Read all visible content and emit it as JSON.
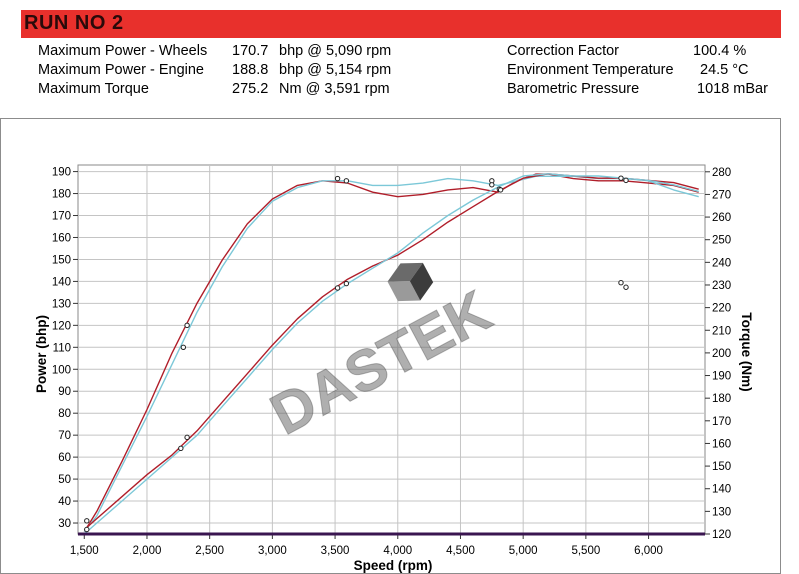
{
  "header": {
    "title": "RUN NO 2"
  },
  "stats": [
    {
      "label": "Maximum Power - Wheels",
      "value": "170.7",
      "unit": "bhp @ 5,090 rpm"
    },
    {
      "label": "Maximum Power - Engine",
      "value": "188.8",
      "unit": "bhp @ 5,154 rpm"
    },
    {
      "label": "Maximum Torque",
      "value": "275.2",
      "unit": "Nm @ 3,591 rpm"
    }
  ],
  "conditions": [
    {
      "label": "Correction Factor",
      "value": "100.4 %"
    },
    {
      "label": "Environment Temperature",
      "value": "24.5 °C"
    },
    {
      "label": "Barometric Pressure",
      "value": "1018 mBar"
    }
  ],
  "watermark": "DASTEK",
  "colors": {
    "title_bar": "#e8302c",
    "red_run": "#b01e2a",
    "cyan_run": "#7cc8d8",
    "axis_bar": "#3a1550"
  },
  "chart_data": {
    "type": "line",
    "xlabel": "Speed (rpm)",
    "ylabel": "Power (bhp)",
    "y2label": "Torque (Nm)",
    "xlim": [
      1450,
      6450
    ],
    "ylim": [
      25,
      193
    ],
    "y2lim": [
      120,
      283
    ],
    "grid": true,
    "x_ticks": [
      1500,
      2000,
      2500,
      3000,
      3500,
      4000,
      4500,
      5000,
      5500,
      6000
    ],
    "x_tick_labels": [
      "1,500",
      "2,000",
      "2,500",
      "3,000",
      "3,500",
      "4,000",
      "4,500",
      "5,000",
      "5,500",
      "6,000"
    ],
    "y_ticks": [
      30,
      40,
      50,
      60,
      70,
      80,
      90,
      100,
      110,
      120,
      130,
      140,
      150,
      160,
      170,
      180,
      190
    ],
    "y2_ticks": [
      120,
      130,
      140,
      150,
      160,
      170,
      180,
      190,
      200,
      210,
      220,
      230,
      240,
      250,
      260,
      270,
      280
    ],
    "series": [
      {
        "color": "#b01e2a",
        "axis": "y2",
        "x": [
          1500,
          1600,
          1800,
          2000,
          2200,
          2400,
          2600,
          2800,
          3000,
          3200,
          3400,
          3600,
          3800,
          4000,
          4200,
          4400,
          4600,
          4800,
          4950,
          5100,
          5200,
          5400,
          5600,
          5800,
          6000,
          6200,
          6400
        ],
        "values": [
          121,
          130,
          152,
          175,
          200,
          222,
          241,
          257,
          268,
          274,
          276,
          275,
          271,
          269,
          270,
          272,
          273,
          271,
          276,
          279,
          279,
          277,
          276,
          276,
          275,
          274,
          271
        ]
      },
      {
        "color": "#7cc8d8",
        "axis": "y2",
        "x": [
          1500,
          1600,
          1800,
          2000,
          2200,
          2400,
          2600,
          2800,
          3000,
          3200,
          3400,
          3600,
          3800,
          4000,
          4200,
          4400,
          4600,
          4800,
          4950,
          5100,
          5200,
          5400,
          5600,
          5800,
          6000,
          6200,
          6400
        ],
        "values": [
          121,
          128,
          150,
          172,
          195,
          218,
          238,
          255,
          267,
          273,
          276,
          276,
          274,
          274,
          275,
          277,
          276,
          274,
          276,
          278,
          278,
          278,
          277,
          277,
          276,
          272,
          269
        ]
      },
      {
        "color": "#b01e2a",
        "axis": "y",
        "x": [
          1500,
          1600,
          1800,
          2000,
          2200,
          2400,
          2600,
          2800,
          3000,
          3200,
          3400,
          3600,
          3800,
          4000,
          4200,
          4400,
          4600,
          4800,
          5000,
          5200,
          5400,
          5600,
          5800,
          6000,
          6200,
          6400
        ],
        "values": [
          27,
          32,
          42,
          52,
          61,
          72,
          85,
          98,
          111,
          123,
          133,
          141,
          147,
          152,
          159,
          167,
          174,
          181,
          187,
          189,
          188,
          187,
          187,
          186,
          185,
          182
        ]
      },
      {
        "color": "#7cc8d8",
        "axis": "y",
        "x": [
          1500,
          1600,
          1800,
          2000,
          2200,
          2400,
          2600,
          2800,
          3000,
          3200,
          3400,
          3600,
          3800,
          4000,
          4200,
          4400,
          4600,
          4800,
          5000,
          5200,
          5400,
          5600,
          5800,
          6000,
          6200,
          6400
        ],
        "values": [
          25,
          30,
          40,
          50,
          60,
          70,
          83,
          96,
          109,
          121,
          131,
          139,
          146,
          153,
          162,
          170,
          177,
          183,
          188,
          189,
          188,
          188,
          187,
          186,
          184,
          181
        ]
      }
    ],
    "markers": [
      {
        "x": 2290,
        "y": 110,
        "axis": "y",
        "color": "#7cc8d8"
      },
      {
        "x": 2320,
        "y": 120,
        "axis": "y",
        "color": "#b01e2a"
      },
      {
        "x": 2270,
        "y": 64,
        "axis": "y",
        "color": "#b01e2a"
      },
      {
        "x": 2320,
        "y": 69,
        "axis": "y",
        "color": "#b01e2a"
      },
      {
        "x": 3520,
        "y": 137,
        "axis": "y",
        "color": "#b01e2a"
      },
      {
        "x": 3590,
        "y": 139,
        "axis": "y",
        "color": "#b01e2a"
      },
      {
        "x": 3520,
        "y": 277,
        "axis": "y2",
        "color": "#7cc8d8"
      },
      {
        "x": 3590,
        "y": 276,
        "axis": "y2",
        "color": "#b01e2a"
      },
      {
        "x": 4750,
        "y": 276,
        "axis": "y2",
        "color": "#7cc8d8"
      },
      {
        "x": 4750,
        "y": 184,
        "axis": "y",
        "color": "#b01e2a"
      },
      {
        "x": 4810,
        "y": 182,
        "axis": "y",
        "color": "#b01e2a"
      },
      {
        "x": 4820,
        "y": 272,
        "axis": "y2",
        "color": "#b01e2a"
      },
      {
        "x": 5780,
        "y": 187,
        "axis": "y",
        "color": "#b01e2a"
      },
      {
        "x": 5820,
        "y": 186,
        "axis": "y",
        "color": "#b01e2a"
      },
      {
        "x": 5780,
        "y": 231,
        "axis": "y2",
        "color": "#7cc8d8"
      },
      {
        "x": 5820,
        "y": 229,
        "axis": "y2",
        "color": "#b01e2a"
      },
      {
        "x": 1520,
        "y": 122,
        "axis": "y2",
        "color": "#b01e2a"
      },
      {
        "x": 1520,
        "y": 31,
        "axis": "y",
        "color": "#b01e2a"
      }
    ]
  }
}
